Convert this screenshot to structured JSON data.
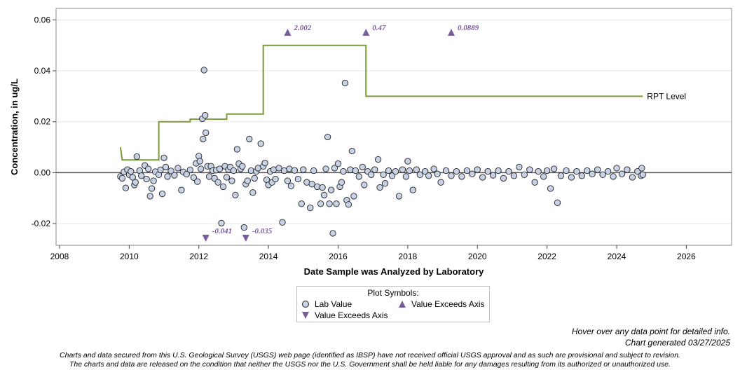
{
  "chart_data": {
    "type": "scatter",
    "ylabel": "Concentration, in ug/L",
    "xlabel": "Date Sample was Analyzed by Laboratory",
    "xlim": [
      2007.9,
      2027.3
    ],
    "ylim": [
      -0.0285,
      0.0645
    ],
    "x_ticks": [
      2008,
      2010,
      2012,
      2014,
      2016,
      2018,
      2020,
      2022,
      2024,
      2026
    ],
    "y_ticks": [
      -0.02,
      0.0,
      0.02,
      0.04,
      0.06
    ],
    "y_tick_labels": [
      "-0.02",
      "0.00",
      "0.02",
      "0.04",
      "0.06"
    ],
    "grid": "horizontal",
    "zero_line": 0,
    "colors": {
      "point_fill": "#c8d2e6",
      "point_stroke": "#222222",
      "marker": "#7a5c9c",
      "rpt": "#7b9a3a",
      "grid": "#e6e6e6"
    },
    "series": [
      {
        "name": "Lab Value",
        "points": [
          [
            2009.75,
            -0.0015
          ],
          [
            2009.8,
            -0.0022
          ],
          [
            2009.85,
            0.0003
          ],
          [
            2009.9,
            -0.006
          ],
          [
            2009.95,
            0.0012
          ],
          [
            2010.0,
            -0.0008
          ],
          [
            2010.05,
            0.0005
          ],
          [
            2010.1,
            -0.0018
          ],
          [
            2010.15,
            -0.0048
          ],
          [
            2010.18,
            -0.0038
          ],
          [
            2010.22,
            0.0063
          ],
          [
            2010.3,
            0.0008
          ],
          [
            2010.35,
            -0.0012
          ],
          [
            2010.45,
            0.0028
          ],
          [
            2010.5,
            -0.0025
          ],
          [
            2010.55,
            0.0015
          ],
          [
            2010.6,
            -0.0092
          ],
          [
            2010.65,
            -0.0062
          ],
          [
            2010.7,
            -0.0032
          ],
          [
            2010.75,
            0.0004
          ],
          [
            2010.85,
            -0.0008
          ],
          [
            2010.9,
            0.0011
          ],
          [
            2010.95,
            -0.0083
          ],
          [
            2011.0,
            0.0058
          ],
          [
            2011.05,
            0.0022
          ],
          [
            2011.1,
            -0.0015
          ],
          [
            2011.2,
            0.0007
          ],
          [
            2011.3,
            -0.001
          ],
          [
            2011.4,
            0.0018
          ],
          [
            2011.5,
            -0.0068
          ],
          [
            2011.55,
            0.0003
          ],
          [
            2011.65,
            -0.0006
          ],
          [
            2011.75,
            0.0011
          ],
          [
            2011.85,
            -0.0019
          ],
          [
            2011.92,
            0.0037
          ],
          [
            2011.96,
            -0.0035
          ],
          [
            2012.0,
            0.0065
          ],
          [
            2012.03,
            0.0045
          ],
          [
            2012.06,
            0.0015
          ],
          [
            2012.1,
            0.0212
          ],
          [
            2012.12,
            0.0132
          ],
          [
            2012.15,
            0.0403
          ],
          [
            2012.18,
            0.0225
          ],
          [
            2012.2,
            0.0157
          ],
          [
            2012.25,
            0.0025
          ],
          [
            2012.3,
            -0.0015
          ],
          [
            2012.35,
            0.0025
          ],
          [
            2012.4,
            0.0008
          ],
          [
            2012.45,
            -0.0022
          ],
          [
            2012.5,
            0.001
          ],
          [
            2012.55,
            -0.0038
          ],
          [
            2012.6,
            0.0015
          ],
          [
            2012.65,
            -0.0198
          ],
          [
            2012.7,
            -0.0055
          ],
          [
            2012.75,
            0.0025
          ],
          [
            2012.8,
            -0.0018
          ],
          [
            2012.85,
            0.0012
          ],
          [
            2012.9,
            0.0022
          ],
          [
            2012.95,
            -0.0032
          ],
          [
            2013.0,
            0.0008
          ],
          [
            2013.05,
            -0.0088
          ],
          [
            2013.1,
            0.0092
          ],
          [
            2013.15,
            0.0035
          ],
          [
            2013.2,
            0.0015
          ],
          [
            2013.25,
            0.0025
          ],
          [
            2013.3,
            -0.0215
          ],
          [
            2013.35,
            -0.0045
          ],
          [
            2013.4,
            -0.0032
          ],
          [
            2013.45,
            0.0132
          ],
          [
            2013.5,
            0.0008
          ],
          [
            2013.55,
            -0.0078
          ],
          [
            2013.6,
            -0.0022
          ],
          [
            2013.65,
            0.0005
          ],
          [
            2013.7,
            0.0018
          ],
          [
            2013.78,
            0.0114
          ],
          [
            2013.85,
            0.0025
          ],
          [
            2013.9,
            0.0038
          ],
          [
            2013.95,
            -0.0028
          ],
          [
            2014.0,
            -0.0048
          ],
          [
            2014.05,
            0.0005
          ],
          [
            2014.1,
            -0.0038
          ],
          [
            2014.15,
            0.0012
          ],
          [
            2014.2,
            -0.0025
          ],
          [
            2014.3,
            0.0018
          ],
          [
            2014.4,
            -0.0195
          ],
          [
            2014.45,
            0.0008
          ],
          [
            2014.55,
            -0.0032
          ],
          [
            2014.6,
            0.0015
          ],
          [
            2014.65,
            -0.0052
          ],
          [
            2014.75,
            0.0009
          ],
          [
            2014.85,
            -0.0025
          ],
          [
            2014.95,
            -0.0122
          ],
          [
            2015.0,
            0.0012
          ],
          [
            2015.1,
            -0.0038
          ],
          [
            2015.2,
            -0.0138
          ],
          [
            2015.25,
            -0.0045
          ],
          [
            2015.3,
            0.0008
          ],
          [
            2015.4,
            -0.0055
          ],
          [
            2015.5,
            -0.0122
          ],
          [
            2015.55,
            -0.0058
          ],
          [
            2015.6,
            -0.0088
          ],
          [
            2015.65,
            0.0015
          ],
          [
            2015.7,
            0.014
          ],
          [
            2015.75,
            -0.0122
          ],
          [
            2015.8,
            -0.0068
          ],
          [
            2015.85,
            -0.0238
          ],
          [
            2015.9,
            0.0018
          ],
          [
            2015.95,
            -0.0122
          ],
          [
            2016.0,
            0.0035
          ],
          [
            2016.05,
            -0.0055
          ],
          [
            2016.1,
            -0.0038
          ],
          [
            2016.15,
            0.0005
          ],
          [
            2016.2,
            0.0352
          ],
          [
            2016.25,
            -0.0108
          ],
          [
            2016.3,
            -0.0125
          ],
          [
            2016.35,
            0.0012
          ],
          [
            2016.4,
            0.0085
          ],
          [
            2016.45,
            -0.0092
          ],
          [
            2016.5,
            0.0008
          ],
          [
            2016.6,
            -0.0015
          ],
          [
            2016.7,
            0.0022
          ],
          [
            2016.75,
            -0.0048
          ],
          [
            2016.85,
            0.0005
          ],
          [
            2016.95,
            -0.0008
          ],
          [
            2017.05,
            0.0012
          ],
          [
            2017.15,
            0.0052
          ],
          [
            2017.2,
            -0.0058
          ],
          [
            2017.3,
            -0.0008
          ],
          [
            2017.35,
            -0.0042
          ],
          [
            2017.45,
            0.0008
          ],
          [
            2017.55,
            -0.0012
          ],
          [
            2017.65,
            0.0005
          ],
          [
            2017.75,
            -0.0092
          ],
          [
            2017.85,
            0.0012
          ],
          [
            2017.95,
            -0.0015
          ],
          [
            2018.0,
            0.0045
          ],
          [
            2018.05,
            0.0008
          ],
          [
            2018.15,
            -0.0068
          ],
          [
            2018.25,
            0.0012
          ],
          [
            2018.35,
            -0.0008
          ],
          [
            2018.5,
            0.0005
          ],
          [
            2018.6,
            -0.0012
          ],
          [
            2018.75,
            0.0015
          ],
          [
            2018.85,
            -0.0005
          ],
          [
            2018.95,
            -0.0038
          ],
          [
            2019.1,
            0.0008
          ],
          [
            2019.25,
            -0.0012
          ],
          [
            2019.4,
            0.0005
          ],
          [
            2019.55,
            -0.0015
          ],
          [
            2019.7,
            0.0008
          ],
          [
            2019.85,
            -0.0005
          ],
          [
            2020.0,
            0.0012
          ],
          [
            2020.15,
            -0.0018
          ],
          [
            2020.3,
            0.0005
          ],
          [
            2020.45,
            -0.001
          ],
          [
            2020.6,
            0.0008
          ],
          [
            2020.75,
            -0.0022
          ],
          [
            2020.9,
            0.0005
          ],
          [
            2021.05,
            -0.0012
          ],
          [
            2021.2,
            0.0022
          ],
          [
            2021.35,
            -0.0008
          ],
          [
            2021.5,
            0.0012
          ],
          [
            2021.65,
            -0.0038
          ],
          [
            2021.75,
            0.0005
          ],
          [
            2021.9,
            -0.0015
          ],
          [
            2022.0,
            0.0008
          ],
          [
            2022.1,
            -0.0062
          ],
          [
            2022.2,
            0.0015
          ],
          [
            2022.3,
            -0.0118
          ],
          [
            2022.4,
            -0.0012
          ],
          [
            2022.55,
            0.0008
          ],
          [
            2022.7,
            -0.0018
          ],
          [
            2022.85,
            0.0005
          ],
          [
            2023.0,
            -0.0012
          ],
          [
            2023.15,
            0.0008
          ],
          [
            2023.3,
            -0.0005
          ],
          [
            2023.45,
            0.0012
          ],
          [
            2023.6,
            -0.0008
          ],
          [
            2023.75,
            0.0005
          ],
          [
            2023.9,
            -0.0015
          ],
          [
            2024.0,
            0.0018
          ],
          [
            2024.15,
            -0.0005
          ],
          [
            2024.3,
            0.0012
          ],
          [
            2024.45,
            -0.0018
          ],
          [
            2024.6,
            0.0005
          ],
          [
            2024.7,
            -0.0012
          ],
          [
            2024.72,
            0.0018
          ],
          [
            2024.75,
            -0.0008
          ]
        ]
      },
      {
        "name": "RPT Level",
        "label": "RPT Level",
        "steps": [
          [
            2009.75,
            0.01
          ],
          [
            2009.8,
            0.005
          ],
          [
            2010.85,
            0.005
          ],
          [
            2010.85,
            0.02
          ],
          [
            2011.75,
            0.02
          ],
          [
            2011.75,
            0.021
          ],
          [
            2012.8,
            0.021
          ],
          [
            2012.8,
            0.023
          ],
          [
            2013.85,
            0.023
          ],
          [
            2013.85,
            0.05
          ],
          [
            2016.8,
            0.05
          ],
          [
            2016.8,
            0.03
          ],
          [
            2024.75,
            0.03
          ]
        ]
      }
    ],
    "exceeds": [
      {
        "x": 2014.55,
        "direction": "up",
        "label": "2.002"
      },
      {
        "x": 2016.8,
        "direction": "up",
        "label": "0.47"
      },
      {
        "x": 2019.25,
        "direction": "up",
        "label": "0.0889"
      },
      {
        "x": 2012.2,
        "direction": "down",
        "label": "-0.041"
      },
      {
        "x": 2013.35,
        "direction": "down",
        "label": "-0.035"
      }
    ],
    "legend": {
      "title": "Plot Symbols:",
      "lab_value": "Lab Value",
      "exceeds_up": "Value Exceeds Axis",
      "exceeds_down": "Value Exceeds Axis"
    }
  },
  "notes": {
    "hover": "Hover over any data point for detailed info.",
    "generated": "Chart generated 03/27/2025"
  },
  "disclaimer": {
    "line1": "Charts and data secured from this U.S. Geological Survey (USGS) web page (identified as IBSP) have not received official USGS approval and as such are provisional and subject to revision.",
    "line2": "The charts and data are released on the condition that neither the USGS nor the U.S. Government shall be held liable for any damages resulting from its authorized or unauthorized use."
  }
}
